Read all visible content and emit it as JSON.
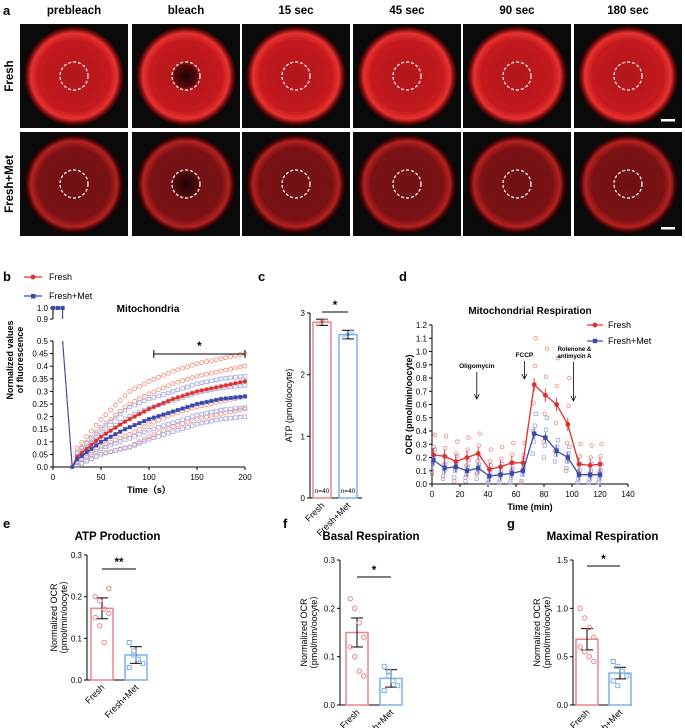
{
  "panel_a": {
    "label": "a",
    "timepoints": [
      "prebleach",
      "bleach",
      "15 sec",
      "45 sec",
      "90 sec",
      "180 sec"
    ],
    "rows": [
      "Fresh",
      "Fresh+Met"
    ]
  },
  "panel_b": {
    "label": "b"
  },
  "panel_c": {
    "label": "c"
  },
  "panel_d": {
    "label": "d"
  },
  "panel_e": {
    "label": "e"
  },
  "panel_f": {
    "label": "f"
  },
  "panel_g": {
    "label": "g"
  },
  "chart_data": [
    {
      "id": "b",
      "type": "scatter",
      "title": "Mitochondria",
      "xlabel": "Time（s）",
      "ylabel": "Normalized values of fluorescence",
      "xlim": [
        0,
        200
      ],
      "ylim_lower": [
        0,
        0.5
      ],
      "ylim_upper": [
        0.9,
        1.0
      ],
      "xticks": [
        0,
        50,
        100,
        150,
        200
      ],
      "yticks_lower": [
        0.0,
        0.05,
        0.1,
        0.15,
        0.2,
        0.25,
        0.3,
        0.35,
        0.4,
        0.45,
        0.5
      ],
      "yticks_upper": [
        0.9,
        1.0
      ],
      "legend": [
        "Fresh",
        "Fresh+Met"
      ],
      "significance": "*",
      "sig_range": [
        105,
        200
      ],
      "series": [
        {
          "name": "Fresh",
          "color": "#e0302e",
          "x": [
            0,
            5,
            10,
            15,
            20,
            25,
            50,
            75,
            100,
            125,
            150,
            175,
            200
          ],
          "values": [
            1.0,
            1.0,
            1.0,
            0.5,
            0.0,
            0.04,
            0.12,
            0.18,
            0.23,
            0.27,
            0.3,
            0.32,
            0.34
          ]
        },
        {
          "name": "Fresh+Met",
          "color": "#3b4aa8",
          "x": [
            0,
            5,
            10,
            15,
            20,
            25,
            50,
            75,
            100,
            125,
            150,
            175,
            200
          ],
          "values": [
            1.0,
            1.0,
            1.0,
            0.5,
            0.0,
            0.03,
            0.1,
            0.15,
            0.19,
            0.22,
            0.25,
            0.27,
            0.28
          ]
        }
      ]
    },
    {
      "id": "c",
      "type": "bar",
      "ylabel": "ATP (pmol/oocyte)",
      "categories": [
        "Fresh",
        "Fresh+Met"
      ],
      "values": [
        2.85,
        2.65
      ],
      "errors": [
        0.05,
        0.07
      ],
      "ylim": [
        0,
        3
      ],
      "yticks": [
        0,
        1,
        2,
        3
      ],
      "n_labels": [
        "n=40",
        "n=40"
      ],
      "significance": "*",
      "colors": [
        "#e8868a",
        "#7fb0e8"
      ]
    },
    {
      "id": "d",
      "type": "line",
      "title": "Mitochondrial Respiration",
      "xlabel": "Time (min)",
      "ylabel": "OCR (pmol/min/oocyte)",
      "xlim": [
        0,
        140
      ],
      "ylim": [
        0,
        1.2
      ],
      "xticks": [
        0,
        20,
        40,
        60,
        80,
        100,
        120,
        140
      ],
      "yticks": [
        0.0,
        0.1,
        0.2,
        0.3,
        0.4,
        0.5,
        0.6,
        0.7,
        0.8,
        0.9,
        1.0,
        1.1,
        1.2
      ],
      "legend": [
        "Fresh",
        "Fresh+Met"
      ],
      "annotations": [
        {
          "text": "Oligomycin",
          "x": 32
        },
        {
          "text": "FCCP",
          "x": 66
        },
        {
          "text": "Rotenone &",
          "text2": "antimycin A",
          "x": 101
        }
      ],
      "x": [
        1,
        9,
        17,
        25,
        33,
        41,
        49,
        57,
        65,
        73,
        81,
        89,
        97,
        105,
        113,
        120
      ],
      "series": [
        {
          "name": "Fresh",
          "color": "#e0302e",
          "values": [
            0.22,
            0.21,
            0.17,
            0.2,
            0.23,
            0.11,
            0.13,
            0.16,
            0.16,
            0.75,
            0.67,
            0.6,
            0.45,
            0.15,
            0.14,
            0.15
          ]
        },
        {
          "name": "Fresh+Met",
          "color": "#3b4aa8",
          "values": [
            0.18,
            0.12,
            0.13,
            0.1,
            0.12,
            0.06,
            0.07,
            0.08,
            0.1,
            0.38,
            0.35,
            0.25,
            0.2,
            0.07,
            0.07,
            0.07
          ]
        }
      ]
    },
    {
      "id": "e",
      "type": "bar",
      "title": "ATP Production",
      "ylabel": "Normalized OCR （pmol/min/oocyte）",
      "categories": [
        "Fresh",
        "Fresh+Met"
      ],
      "values": [
        0.172,
        0.06
      ],
      "errors": [
        0.025,
        0.02
      ],
      "ylim": [
        0,
        0.3
      ],
      "yticks": [
        0.0,
        0.1,
        0.2,
        0.3
      ],
      "significance": "**",
      "points": [
        [
          0.2,
          0.19,
          0.17,
          0.16,
          0.15,
          0.13,
          0.09,
          0.22
        ],
        [
          0.09,
          0.07,
          0.05,
          0.04,
          0.03,
          0.06
        ]
      ],
      "colors": [
        "#e8868a",
        "#7fb0e8"
      ]
    },
    {
      "id": "f",
      "type": "bar",
      "title": "Basal Respiration",
      "ylabel": "Normalized OCR （pmol/min/oocyte）",
      "categories": [
        "Fresh",
        "Fresh+Met"
      ],
      "values": [
        0.15,
        0.055
      ],
      "errors": [
        0.03,
        0.018
      ],
      "ylim": [
        0,
        0.3
      ],
      "yticks": [
        0.0,
        0.1,
        0.2,
        0.3
      ],
      "significance": "*",
      "points": [
        [
          0.22,
          0.2,
          0.17,
          0.14,
          0.12,
          0.1,
          0.07,
          0.06
        ],
        [
          0.08,
          0.06,
          0.05,
          0.04,
          0.03,
          0.07
        ]
      ],
      "colors": [
        "#e8868a",
        "#7fb0e8"
      ]
    },
    {
      "id": "g",
      "type": "bar",
      "title": "Maximal Respiration",
      "ylabel": "Normalized OCR （pmol/min/oocyte）",
      "categories": [
        "Fresh",
        "Fresh+Met"
      ],
      "values": [
        0.68,
        0.33
      ],
      "errors": [
        0.11,
        0.06
      ],
      "ylim": [
        0,
        1.5
      ],
      "yticks": [
        0.0,
        0.5,
        1.0,
        1.5
      ],
      "significance": "*",
      "points": [
        [
          1.0,
          0.9,
          0.8,
          0.7,
          0.6,
          0.55,
          0.5,
          0.45
        ],
        [
          0.45,
          0.4,
          0.35,
          0.3,
          0.25,
          0.2
        ]
      ],
      "colors": [
        "#e8868a",
        "#7fb0e8"
      ]
    }
  ]
}
